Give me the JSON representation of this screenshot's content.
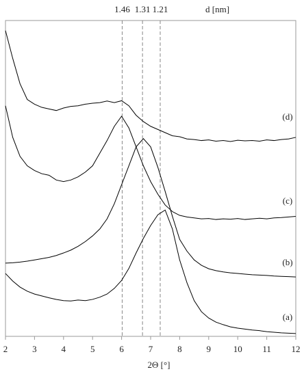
{
  "chart_data": {
    "type": "line",
    "x": [
      2,
      2.25,
      2.5,
      2.75,
      3,
      3.25,
      3.5,
      3.75,
      4,
      4.25,
      4.5,
      4.75,
      5,
      5.25,
      5.5,
      5.75,
      6,
      6.25,
      6.5,
      6.75,
      7,
      7.25,
      7.5,
      7.75,
      8,
      8.25,
      8.5,
      8.75,
      9,
      9.25,
      9.5,
      9.75,
      10,
      10.25,
      10.5,
      10.75,
      11,
      11.25,
      11.5,
      11.75,
      12
    ],
    "series": [
      {
        "name": "(d)",
        "color": "#000000",
        "values": [
          96.8,
          88,
          80,
          75,
          73.5,
          72.5,
          72,
          71.5,
          72.3,
          72.8,
          73,
          73.5,
          73.8,
          74,
          74.5,
          74,
          74.6,
          73,
          70,
          68,
          66.5,
          65.5,
          64.5,
          63.5,
          63.2,
          62.5,
          62.3,
          62,
          62.2,
          61.8,
          62,
          61.7,
          62.1,
          61.9,
          62,
          61.8,
          62.2,
          62,
          62.3,
          62.5,
          63
        ]
      },
      {
        "name": "(c)",
        "color": "#000000",
        "values": [
          73,
          63,
          57,
          54,
          52.5,
          51.5,
          51,
          49.5,
          49,
          49.5,
          50.5,
          52,
          54,
          58,
          62,
          66.5,
          69.7,
          66,
          60,
          54,
          49,
          45,
          41.6,
          39.5,
          38.3,
          37.8,
          37.5,
          37.2,
          37.3,
          37,
          37.2,
          37.1,
          37.3,
          37,
          37.2,
          37.4,
          37.2,
          37.5,
          37.6,
          37.8,
          38
        ]
      },
      {
        "name": "(b)",
        "color": "#000000",
        "values": [
          23.2,
          23.3,
          23.5,
          23.8,
          24.2,
          24.6,
          25,
          25.6,
          26.4,
          27.3,
          28.5,
          30,
          31.8,
          34,
          37.2,
          42,
          48,
          54,
          60,
          62.6,
          60,
          53.5,
          45.9,
          38,
          30.7,
          27,
          24.2,
          22.5,
          21.4,
          20.8,
          20.4,
          20.1,
          19.9,
          19.7,
          19.5,
          19.4,
          19.3,
          19.1,
          19,
          18.9,
          18.8
        ]
      },
      {
        "name": "(a)",
        "color": "#000000",
        "values": [
          19.9,
          17.5,
          15.6,
          14.3,
          13.4,
          12.8,
          12.2,
          11.7,
          11.3,
          11.2,
          11.5,
          11.3,
          11.7,
          12.4,
          13.4,
          15.2,
          17.7,
          21.5,
          26.4,
          31,
          35.1,
          38.5,
          40,
          34,
          24.2,
          17,
          11.3,
          7.8,
          5.8,
          4.5,
          3.7,
          3,
          2.6,
          2.3,
          2,
          1.8,
          1.5,
          1.3,
          1.1,
          1,
          0.9
        ]
      }
    ],
    "xlim": [
      2,
      12
    ],
    "xticks": [
      2,
      3,
      4,
      5,
      6,
      7,
      8,
      9,
      10,
      11,
      12
    ],
    "ylim": [
      0,
      100
    ],
    "x_label": "2Θ [°]",
    "x2_label": "d [nm]",
    "x2ticks": [
      {
        "value": 6.02,
        "label": "1.46"
      },
      {
        "value": 6.72,
        "label": "1.31"
      },
      {
        "value": 7.33,
        "label": "1.21"
      }
    ]
  }
}
